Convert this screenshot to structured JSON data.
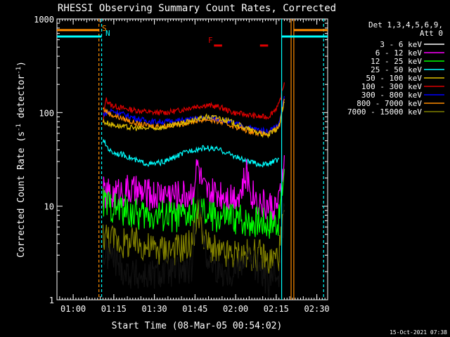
{
  "chart_data": {
    "type": "line",
    "title": "RHESSI Observing Summary Count Rates, Corrected",
    "xlabel": "Start Time (08-Mar-05 00:54:02)",
    "ylabel_main": "Corrected Count Rate (s",
    "ylabel_exp1": "-1",
    "ylabel_mid": " detector",
    "ylabel_exp2": "-1",
    "ylabel_end": ")",
    "yscale": "log",
    "ylim": [
      1,
      1000
    ],
    "xlim_minutes_since_0054": [
      0,
      100
    ],
    "x_ticks": [
      {
        "label": "01:00",
        "min": 6
      },
      {
        "label": "01:15",
        "min": 21
      },
      {
        "label": "01:30",
        "min": 36
      },
      {
        "label": "01:45",
        "min": 51
      },
      {
        "label": "02:00",
        "min": 66
      },
      {
        "label": "02:15",
        "min": 81
      },
      {
        "label": "02:30",
        "min": 96
      }
    ],
    "y_ticks": [
      {
        "label": "1",
        "value": 1
      },
      {
        "label": "10",
        "value": 10
      },
      {
        "label": "100",
        "value": 100
      },
      {
        "label": "1000",
        "value": 1000
      }
    ],
    "legend_header": [
      "Det 1,3,4,5,6,9,",
      "Att 0"
    ],
    "legend": [
      {
        "label": "3 - 6 keV",
        "color": "#000000"
      },
      {
        "label": "6 - 12 keV",
        "color": "#ff00ff"
      },
      {
        "label": "12 - 25 keV",
        "color": "#00ff00"
      },
      {
        "label": "25 - 50 keV",
        "color": "#00ffff"
      },
      {
        "label": "50 - 100 keV",
        "color": "#e0c000"
      },
      {
        "label": "100 - 300 keV",
        "color": "#e00000"
      },
      {
        "label": "300 - 800 keV",
        "color": "#0000ff"
      },
      {
        "label": "800 - 7000 keV",
        "color": "#ff8c00"
      },
      {
        "label": "7000 - 15000 keV",
        "color": "#808000"
      }
    ],
    "annotations": {
      "saa": "S",
      "night": "N",
      "flare": "F"
    },
    "series": [
      {
        "color": "#e00000",
        "x": [
          17,
          18,
          20,
          25,
          30,
          35,
          40,
          45,
          50,
          55,
          60,
          65,
          70,
          75,
          78,
          82,
          84
        ],
        "y": [
          75,
          140,
          120,
          110,
          105,
          100,
          100,
          105,
          115,
          120,
          115,
          100,
          95,
          90,
          90,
          120,
          210
        ]
      },
      {
        "color": "#0000ff",
        "x": [
          17,
          20,
          25,
          30,
          35,
          40,
          45,
          50,
          55,
          60,
          65,
          70,
          75,
          78,
          82,
          84
        ],
        "y": [
          95,
          105,
          95,
          85,
          80,
          80,
          82,
          85,
          88,
          85,
          78,
          70,
          65,
          63,
          75,
          150
        ]
      },
      {
        "color": "#ff8c00",
        "x": [
          17,
          20,
          25,
          30,
          35,
          40,
          45,
          50,
          55,
          60,
          65,
          70,
          75,
          78,
          82,
          84
        ],
        "y": [
          110,
          95,
          85,
          75,
          72,
          72,
          75,
          80,
          85,
          80,
          72,
          65,
          60,
          58,
          70,
          140
        ]
      },
      {
        "color": "#e0c000",
        "x": [
          17,
          20,
          25,
          30,
          35,
          40,
          45,
          50,
          55,
          60,
          65,
          70,
          75,
          78,
          82,
          84
        ],
        "y": [
          80,
          75,
          70,
          68,
          68,
          70,
          75,
          82,
          90,
          88,
          78,
          68,
          60,
          57,
          70,
          130
        ]
      },
      {
        "color": "#00ffff",
        "x": [
          17,
          20,
          25,
          30,
          35,
          40,
          45,
          50,
          55,
          60,
          65,
          70,
          75,
          78,
          82
        ],
        "y": [
          50,
          38,
          35,
          30,
          28,
          30,
          35,
          40,
          42,
          40,
          35,
          30,
          28,
          28,
          32
        ]
      },
      {
        "color": "#ff00ff",
        "x": [
          17,
          20,
          25,
          30,
          35,
          40,
          45,
          50,
          52,
          54,
          56,
          60,
          65,
          68,
          70,
          72,
          75,
          78,
          82,
          84
        ],
        "y": [
          14,
          13,
          15,
          14,
          13,
          14,
          13,
          14,
          28,
          15,
          13,
          14,
          13,
          14,
          22,
          14,
          11,
          10,
          10,
          35
        ]
      },
      {
        "color": "#00ff00",
        "x": [
          17,
          20,
          25,
          30,
          35,
          40,
          45,
          50,
          52,
          55,
          60,
          65,
          70,
          75,
          78,
          82,
          84
        ],
        "y": [
          11,
          10,
          9,
          8,
          8,
          8,
          7.5,
          8,
          9,
          8,
          7.5,
          7.5,
          7,
          7,
          6.5,
          7,
          25
        ]
      },
      {
        "color": "#808000",
        "x": [
          17,
          20,
          25,
          30,
          35,
          40,
          45,
          50,
          52,
          55,
          60,
          65,
          70,
          75,
          78,
          82,
          84
        ],
        "y": [
          5,
          4.5,
          4,
          4,
          3.5,
          3.5,
          3.5,
          4,
          9,
          4,
          3,
          3,
          3,
          3,
          2.5,
          3,
          9
        ]
      },
      {
        "color": "#000000",
        "x": [
          17,
          20,
          25,
          30,
          35,
          40,
          45,
          50,
          52,
          55,
          60,
          65,
          70,
          75,
          78,
          82,
          84
        ],
        "y": [
          3,
          3,
          2,
          1.8,
          1.8,
          2,
          2,
          2,
          18,
          3,
          2,
          2,
          3,
          2,
          1.5,
          2,
          10
        ]
      }
    ],
    "vlines": [
      {
        "min": 15.5,
        "color": "#ff8c00",
        "dash": true
      },
      {
        "min": 16.5,
        "color": "#00ffff",
        "dash": true
      },
      {
        "min": 83,
        "color": "#00ffff",
        "dash": false
      },
      {
        "min": 87.5,
        "color": "#ff8c00",
        "dash": false
      },
      {
        "min": 86.5,
        "color": "#ff8c00",
        "dash": false
      },
      {
        "min": 98.5,
        "color": "#00ffff",
        "dash": true
      }
    ],
    "night_bars": [
      {
        "x0": 0,
        "x1": 16.5,
        "y": 650,
        "color": "#00ffff"
      },
      {
        "x0": 0,
        "x1": 15.5,
        "y": 760,
        "color": "#ff8c00"
      },
      {
        "x0": 83,
        "x1": 100,
        "y": 650,
        "color": "#00ffff"
      },
      {
        "x0": 87.5,
        "x1": 100,
        "y": 760,
        "color": "#ff8c00"
      }
    ],
    "flare_bars": [
      {
        "x0": 58,
        "x1": 61,
        "y": 520
      },
      {
        "x0": 75,
        "x1": 78,
        "y": 520
      }
    ]
  },
  "footer_date": "15-Oct-2021 07:38"
}
